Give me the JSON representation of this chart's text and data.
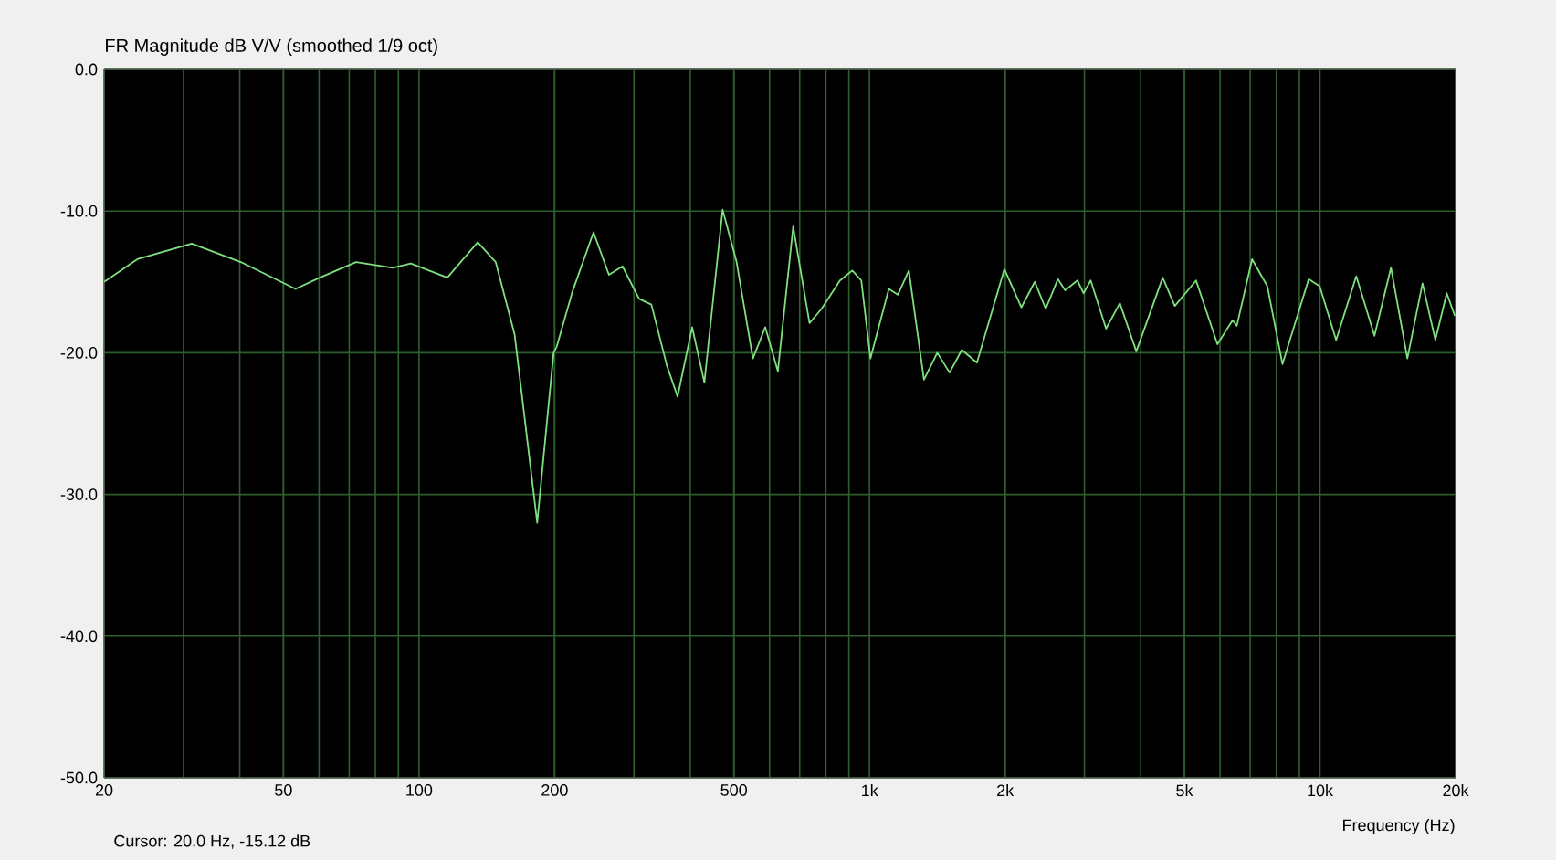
{
  "chart_data": {
    "type": "line",
    "title": "FR Magnitude dB V/V (smoothed 1/9 oct)",
    "xlabel": "Frequency (Hz)",
    "annotations": [
      "Cursor: 20.0 Hz, -15.12 dB"
    ],
    "log": "x",
    "grid": true,
    "marker": "none",
    "line_style": "solid",
    "xlim": [
      20,
      20000
    ],
    "ylim": [
      -50,
      0
    ],
    "xticks": [
      20,
      50,
      100,
      200,
      500,
      {
        "value": 1000,
        "label": "1k"
      },
      {
        "value": 2000,
        "label": "2k"
      },
      {
        "value": 5000,
        "label": "5k"
      },
      {
        "value": 10000,
        "label": "10k"
      },
      {
        "value": 20000,
        "label": "20k"
      }
    ],
    "yticks": [
      {
        "value": 0,
        "label": "0.0"
      },
      {
        "value": -10,
        "label": "-10.0"
      },
      {
        "value": -20,
        "label": "-20.0"
      },
      {
        "value": -30,
        "label": "-30.0"
      },
      {
        "value": -40,
        "label": "-40.0"
      },
      {
        "value": -50,
        "label": "-50.0"
      }
    ],
    "series": [
      {
        "color": "#7ee07e",
        "x": [
          20,
          23.7,
          31.3,
          40.2,
          53.2,
          60.2,
          72.5,
          87.4,
          95.9,
          115.6,
          135,
          148,
          163,
          183,
          199,
          202,
          219,
          244,
          264,
          283,
          308,
          328,
          355,
          375,
          404,
          430,
          472,
          507,
          551,
          587,
          626,
          677,
          736,
          783,
          860,
          916,
          959,
          1005,
          1104,
          1156,
          1223,
          1321,
          1414,
          1506,
          1603,
          1732,
          1993,
          2173,
          2328,
          2462,
          2620,
          2718,
          2894,
          2986,
          3098,
          3351,
          3596,
          3912,
          4476,
          4762,
          5309,
          5920,
          6400,
          6538,
          7070,
          7642,
          8256,
          9442,
          9986,
          10862,
          12038,
          13214,
          14376,
          15632,
          16892,
          18032,
          19122,
          19926
        ],
        "values": [
          -15.0,
          -13.4,
          -12.3,
          -13.6,
          -15.5,
          -14.7,
          -13.6,
          -14.0,
          -13.7,
          -14.7,
          -12.2,
          -13.6,
          -18.7,
          -32.0,
          -20.0,
          -19.6,
          -15.7,
          -11.5,
          -14.5,
          -13.9,
          -16.2,
          -16.6,
          -20.9,
          -23.1,
          -18.2,
          -22.1,
          -9.9,
          -13.6,
          -20.4,
          -18.2,
          -21.3,
          -11.1,
          -17.9,
          -16.9,
          -14.9,
          -14.2,
          -14.9,
          -20.4,
          -15.5,
          -15.9,
          -14.2,
          -21.9,
          -20.0,
          -21.4,
          -19.8,
          -20.7,
          -14.1,
          -16.8,
          -15.0,
          -16.9,
          -14.8,
          -15.6,
          -14.9,
          -15.8,
          -14.9,
          -18.3,
          -16.5,
          -19.9,
          -14.7,
          -16.7,
          -14.9,
          -19.4,
          -17.7,
          -18.1,
          -13.4,
          -15.3,
          -20.8,
          -14.8,
          -15.3,
          -19.1,
          -14.6,
          -18.8,
          -14.0,
          -20.4,
          -15.1,
          -19.1,
          -15.8,
          -17.4
        ]
      }
    ]
  }
}
